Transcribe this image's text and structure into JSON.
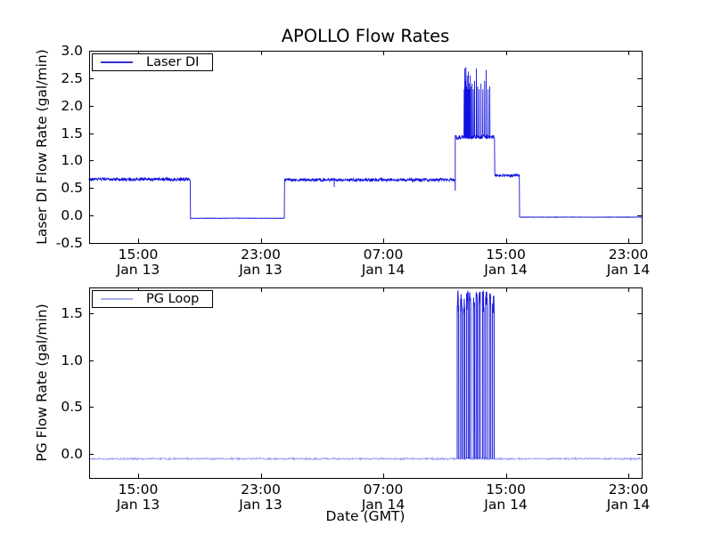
{
  "title": "APOLLO Flow Rates",
  "xlabel": "Date (GMT)",
  "colors": {
    "background": "#ffffff",
    "axis": "#000000",
    "text": "#000000"
  },
  "chart_data": [
    {
      "type": "line",
      "name": "laser-di",
      "ylabel": "Laser DI Flow Rate (gal/min)",
      "legend": {
        "label": "Laser DI",
        "line_color": "#3333cf",
        "location": "upper left"
      },
      "line_color": "#1010e0",
      "ylim": [
        -0.5,
        3.0
      ],
      "yticks": [
        3.0,
        2.5,
        2.0,
        1.5,
        1.0,
        0.5,
        0.0,
        -0.5
      ],
      "xlim_hours": [
        11.8,
        47.87
      ],
      "x_unit": "hours since Jan 13 00:00 GMT",
      "xticks": [
        {
          "hours": 15,
          "time": "15:00",
          "date": "Jan 13"
        },
        {
          "hours": 23,
          "time": "23:00",
          "date": "Jan 13"
        },
        {
          "hours": 31,
          "time": "07:00",
          "date": "Jan 14"
        },
        {
          "hours": 39,
          "time": "15:00",
          "date": "Jan 14"
        },
        {
          "hours": 47,
          "time": "23:00",
          "date": "Jan 14"
        }
      ],
      "segments": [
        {
          "t0": 11.8,
          "t1": 18.4,
          "level": 0.66,
          "noise": 0.028
        },
        {
          "t0": 18.4,
          "t1": 24.55,
          "level": -0.05,
          "noise": 0.004
        },
        {
          "t0": 24.55,
          "t1": 35.7,
          "level": 0.65,
          "noise": 0.028
        },
        {
          "t0": 35.7,
          "t1": 38.27,
          "level": 1.43,
          "noise": 0.04
        },
        {
          "t0": 38.27,
          "t1": 39.9,
          "level": 0.73,
          "noise": 0.02
        },
        {
          "t0": 39.9,
          "t1": 47.87,
          "level": -0.03,
          "noise": 0.004
        }
      ],
      "dips": [
        {
          "t": 27.8,
          "value": 0.52
        },
        {
          "t": 35.7,
          "value": 0.45
        }
      ],
      "spikes": [
        {
          "t": 36.28,
          "peak": 2.3
        },
        {
          "t": 36.32,
          "peak": 2.68
        },
        {
          "t": 36.36,
          "peak": 2.45
        },
        {
          "t": 36.4,
          "peak": 2.7
        },
        {
          "t": 36.44,
          "peak": 2.35
        },
        {
          "t": 36.48,
          "peak": 2.55
        },
        {
          "t": 36.52,
          "peak": 2.3
        },
        {
          "t": 36.56,
          "peak": 2.62
        },
        {
          "t": 36.6,
          "peak": 2.4
        },
        {
          "t": 36.64,
          "peak": 2.3
        },
        {
          "t": 36.68,
          "peak": 2.55
        },
        {
          "t": 36.72,
          "peak": 2.35
        },
        {
          "t": 36.8,
          "peak": 2.4
        },
        {
          "t": 36.88,
          "peak": 2.3
        },
        {
          "t": 36.96,
          "peak": 2.45
        },
        {
          "t": 37.08,
          "peak": 2.68
        },
        {
          "t": 37.16,
          "peak": 2.35
        },
        {
          "t": 37.26,
          "peak": 2.3
        },
        {
          "t": 37.38,
          "peak": 2.4
        },
        {
          "t": 37.5,
          "peak": 2.3
        },
        {
          "t": 37.62,
          "peak": 2.45
        },
        {
          "t": 37.72,
          "peak": 2.65
        },
        {
          "t": 37.84,
          "peak": 2.3
        },
        {
          "t": 37.95,
          "peak": 2.35
        }
      ]
    },
    {
      "type": "line",
      "name": "pg-loop",
      "ylabel": "PG Flow Rate (gal/min)",
      "legend": {
        "label": "PG Loop",
        "line_color": "#a6abf0",
        "location": "upper left"
      },
      "baseline_color": "#9b9ff0",
      "pulse_color": "#1818dd",
      "ylim": [
        -0.26,
        1.78
      ],
      "yticks": [
        1.5,
        1.0,
        0.5,
        0.0
      ],
      "xlim_hours": [
        11.8,
        47.87
      ],
      "x_unit": "hours since Jan 13 00:00 GMT",
      "xticks": [
        {
          "hours": 15,
          "time": "15:00",
          "date": "Jan 13"
        },
        {
          "hours": 23,
          "time": "23:00",
          "date": "Jan 13"
        },
        {
          "hours": 31,
          "time": "07:00",
          "date": "Jan 14"
        },
        {
          "hours": 39,
          "time": "15:00",
          "date": "Jan 14"
        },
        {
          "hours": 47,
          "time": "23:00",
          "date": "Jan 14"
        }
      ],
      "baseline": {
        "level": -0.055,
        "noise": 0.01
      },
      "pulse_top": [
        1.5,
        1.75
      ],
      "pulses": [
        [
          35.83,
          35.93
        ],
        [
          36.05,
          36.14
        ],
        [
          36.24,
          36.33
        ],
        [
          36.43,
          36.54
        ],
        [
          36.62,
          36.71
        ],
        [
          36.88,
          36.97
        ],
        [
          37.06,
          37.14
        ],
        [
          37.24,
          37.34
        ],
        [
          37.48,
          37.57
        ],
        [
          37.68,
          37.8
        ],
        [
          37.93,
          38.02
        ],
        [
          38.13,
          38.24
        ]
      ]
    }
  ]
}
